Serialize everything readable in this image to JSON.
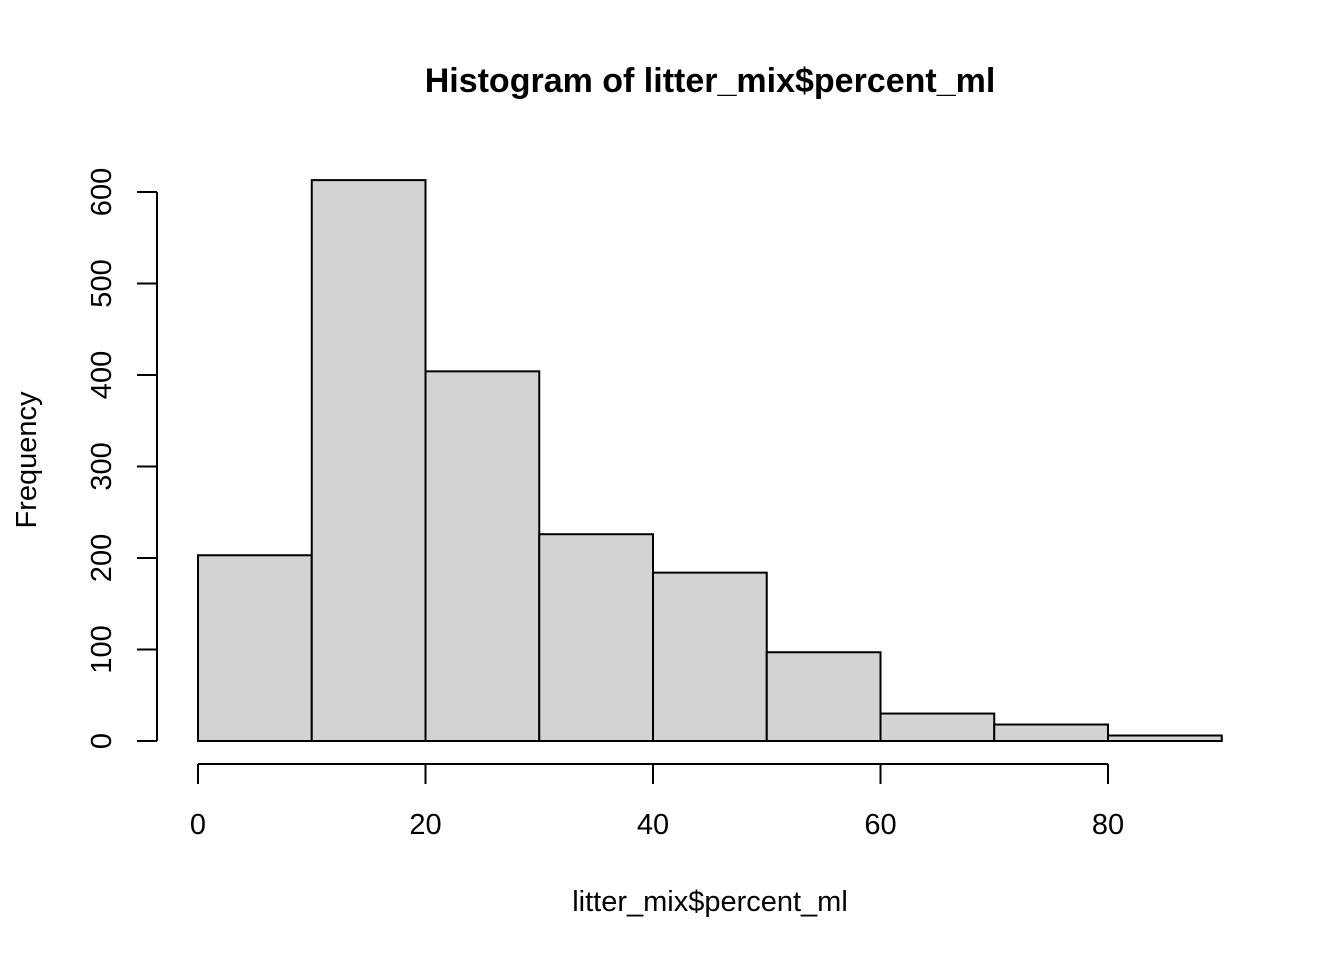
{
  "chart_data": {
    "type": "bar",
    "subtype": "histogram",
    "title": "Histogram of litter_mix$percent_ml",
    "xlabel": "litter_mix$percent_ml",
    "ylabel": "Frequency",
    "bins": [
      {
        "x0": 0,
        "x1": 10,
        "count": 203
      },
      {
        "x0": 10,
        "x1": 20,
        "count": 613
      },
      {
        "x0": 20,
        "x1": 30,
        "count": 404
      },
      {
        "x0": 30,
        "x1": 40,
        "count": 226
      },
      {
        "x0": 40,
        "x1": 50,
        "count": 184
      },
      {
        "x0": 50,
        "x1": 60,
        "count": 97
      },
      {
        "x0": 60,
        "x1": 70,
        "count": 30
      },
      {
        "x0": 70,
        "x1": 80,
        "count": 18
      },
      {
        "x0": 80,
        "x1": 90,
        "count": 6
      }
    ],
    "xticks": [
      0,
      20,
      40,
      60,
      80
    ],
    "yticks": [
      0,
      100,
      200,
      300,
      400,
      500,
      600
    ],
    "xlim": [
      0,
      90
    ],
    "ylim": [
      0,
      613
    ],
    "bar_color": "#d3d3d3",
    "edge_color": "#000000",
    "grid": false,
    "legend": false
  }
}
